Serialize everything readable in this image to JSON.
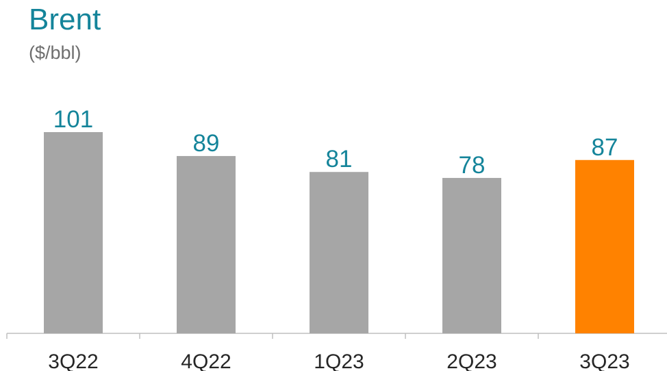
{
  "chart_data": {
    "type": "bar",
    "title": "Brent",
    "subtitle": "($/bbl)",
    "xlabel": "",
    "ylabel": "",
    "categories": [
      "3Q22",
      "4Q22",
      "1Q23",
      "2Q23",
      "3Q23"
    ],
    "values": [
      101,
      89,
      81,
      78,
      87
    ],
    "data_labels": [
      "101",
      "89",
      "81",
      "78",
      "87"
    ],
    "ylim": [
      0,
      101
    ],
    "grid": false,
    "legend": "none",
    "colors": {
      "bar": "#A6A6A6",
      "highlight_bar": "#FF8200",
      "highlight_index": 4,
      "title": "#14849A",
      "subtitle": "#6E6E6E",
      "data_label": "#14849A",
      "tick_label": "#262626",
      "axis": "#BFBFBF"
    }
  }
}
